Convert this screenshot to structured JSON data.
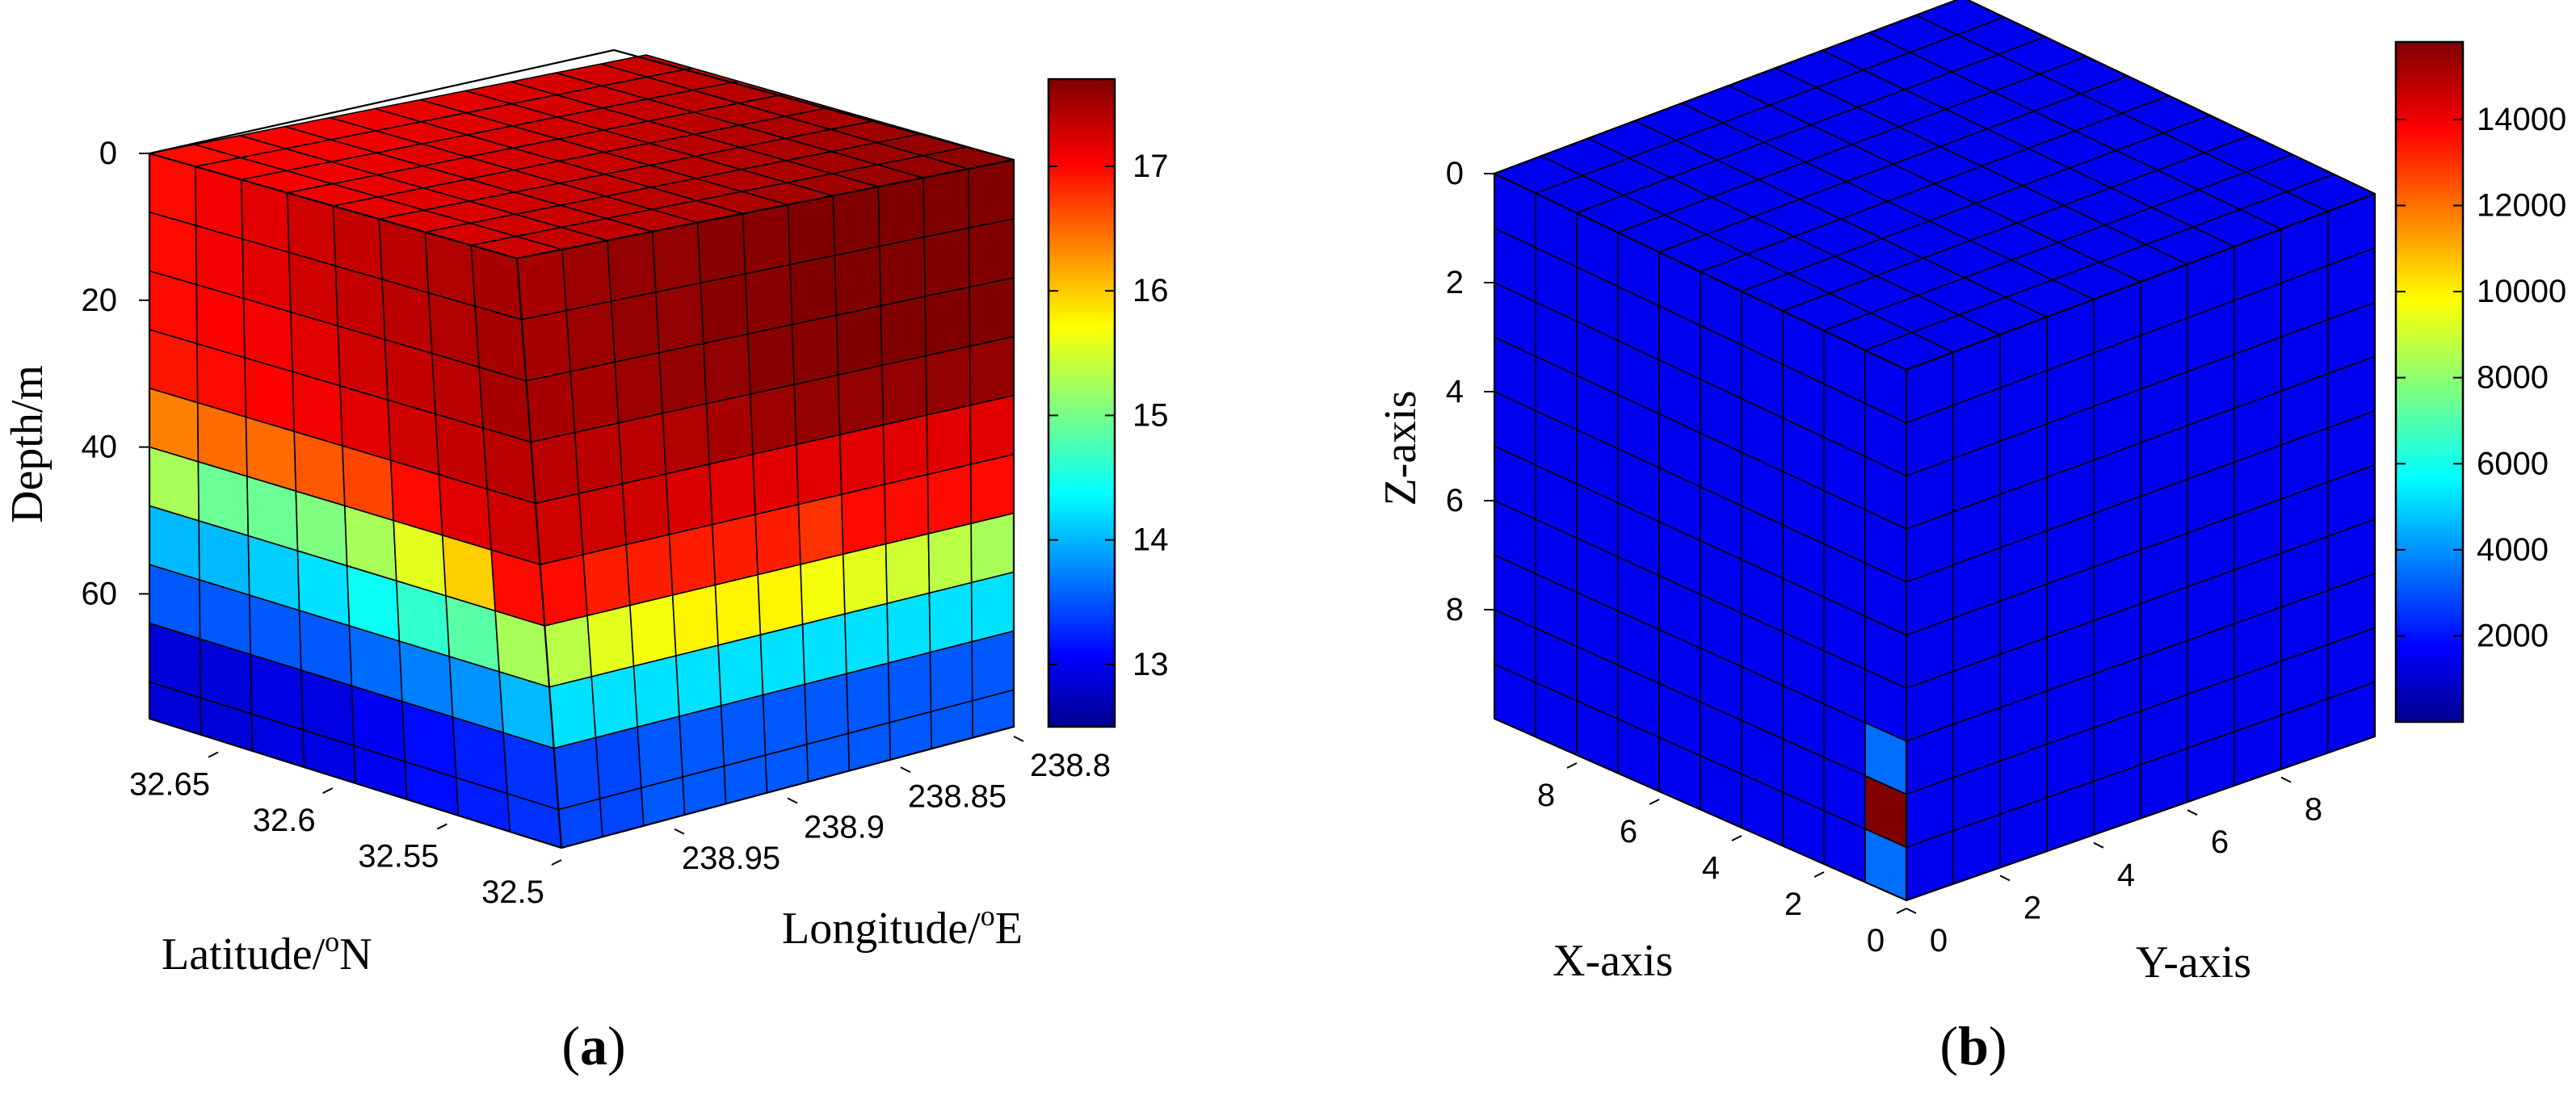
{
  "chart_data": [
    {
      "type": "3d-slice-volume",
      "panel_label": "a",
      "xlabel": "Latitude/°N",
      "xlabel_parts": {
        "main": "Latitude/",
        "sup": "o",
        "tail": "N"
      },
      "ylabel": "Longitude/°E",
      "ylabel_parts": {
        "main": "Longitude/",
        "sup": "o",
        "tail": "E"
      },
      "zlabel": "Depth/m",
      "latitude_ticks": [
        "32.65",
        "32.6",
        "32.55",
        "32.5"
      ],
      "longitude_ticks": [
        "238.95",
        "238.9",
        "238.85",
        "238.8"
      ],
      "depth_ticks": [
        "0",
        "20",
        "40",
        "60"
      ],
      "latitude_range": [
        32.5,
        32.68
      ],
      "longitude_range": [
        238.8,
        239.0
      ],
      "depth_range": [
        0,
        75
      ],
      "depth_reversed": true,
      "colorbar": {
        "ticks": [
          "13",
          "14",
          "15",
          "16",
          "17"
        ],
        "min": 12.5,
        "max": 17.7,
        "colormap": "jet"
      },
      "depth_levels": [
        0,
        8,
        16,
        24,
        32,
        40,
        48,
        56,
        64,
        72
      ],
      "values_latitude_face": [
        [
          17.0,
          17.1,
          17.2,
          17.3,
          17.35,
          17.4,
          17.45,
          17.5
        ],
        [
          17.0,
          17.1,
          17.2,
          17.3,
          17.35,
          17.4,
          17.45,
          17.5
        ],
        [
          17.0,
          17.05,
          17.1,
          17.2,
          17.3,
          17.35,
          17.4,
          17.5
        ],
        [
          16.95,
          17.0,
          17.05,
          17.1,
          17.2,
          17.3,
          17.35,
          17.4
        ],
        [
          16.4,
          16.5,
          16.5,
          16.6,
          16.7,
          17.0,
          17.2,
          17.3
        ],
        [
          15.3,
          15.0,
          15.0,
          15.1,
          15.3,
          15.6,
          16.0,
          17.0
        ],
        [
          14.1,
          14.1,
          14.2,
          14.3,
          14.5,
          14.7,
          14.9,
          15.3
        ],
        [
          13.6,
          13.6,
          13.6,
          13.6,
          13.7,
          13.8,
          13.9,
          14.1
        ],
        [
          12.95,
          12.95,
          13.0,
          13.0,
          13.1,
          13.2,
          13.3,
          13.4
        ],
        [
          12.95,
          12.95,
          13.0,
          13.0,
          13.1,
          13.2,
          13.3,
          13.4
        ]
      ],
      "values_longitude_face": [
        [
          17.5,
          17.55,
          17.6,
          17.6,
          17.65,
          17.65,
          17.7,
          17.7,
          17.7,
          17.7,
          17.7
        ],
        [
          17.5,
          17.55,
          17.6,
          17.6,
          17.65,
          17.65,
          17.7,
          17.7,
          17.7,
          17.7,
          17.7
        ],
        [
          17.5,
          17.5,
          17.55,
          17.6,
          17.6,
          17.65,
          17.65,
          17.7,
          17.7,
          17.7,
          17.7
        ],
        [
          17.4,
          17.4,
          17.4,
          17.45,
          17.5,
          17.55,
          17.6,
          17.6,
          17.6,
          17.6,
          17.6
        ],
        [
          17.3,
          17.3,
          17.3,
          17.25,
          17.2,
          17.2,
          17.2,
          17.2,
          17.2,
          17.2,
          17.2
        ],
        [
          17.0,
          16.9,
          16.9,
          16.9,
          16.9,
          16.9,
          16.8,
          17.0,
          17.0,
          17.0,
          17.0
        ],
        [
          15.4,
          15.6,
          15.7,
          15.8,
          15.8,
          15.8,
          15.7,
          15.6,
          15.5,
          15.4,
          15.3
        ],
        [
          14.3,
          14.3,
          14.3,
          14.3,
          14.3,
          14.3,
          14.3,
          14.3,
          14.3,
          14.3,
          14.3
        ],
        [
          13.5,
          13.5,
          13.6,
          13.6,
          13.6,
          13.6,
          13.6,
          13.6,
          13.6,
          13.6,
          13.6
        ],
        [
          13.5,
          13.5,
          13.6,
          13.6,
          13.6,
          13.6,
          13.6,
          13.6,
          13.6,
          13.6,
          13.6
        ]
      ],
      "values_top_face": "approximately 17.0 near latitude corner rising to 17.7 near longitude corner"
    },
    {
      "type": "3d-voxel-cube",
      "panel_label": "b",
      "xlabel": "X-axis",
      "ylabel": "Y-axis",
      "zlabel": "Z-axis",
      "x_ticks": [
        "8",
        "6",
        "4",
        "2",
        "0"
      ],
      "y_ticks": [
        "0",
        "2",
        "4",
        "6",
        "8"
      ],
      "z_ticks": [
        "0",
        "2",
        "4",
        "6",
        "8"
      ],
      "x_range": [
        0,
        10
      ],
      "y_range": [
        0,
        10
      ],
      "z_range": [
        0,
        10
      ],
      "z_reversed": true,
      "grid_size": 10,
      "background_value": 20,
      "highlighted_cells": [
        {
          "face": "x-face",
          "column": 0,
          "row": 8,
          "value": 15800
        },
        {
          "face": "x-face",
          "column": 0,
          "row": 7,
          "value": 2200
        },
        {
          "face": "x-face",
          "column": 0,
          "row": 9,
          "value": 2200
        }
      ],
      "colorbar": {
        "ticks": [
          "2000",
          "4000",
          "6000",
          "8000",
          "10000",
          "12000",
          "14000"
        ],
        "min": 0,
        "max": 15800,
        "colormap": "jet"
      }
    }
  ]
}
